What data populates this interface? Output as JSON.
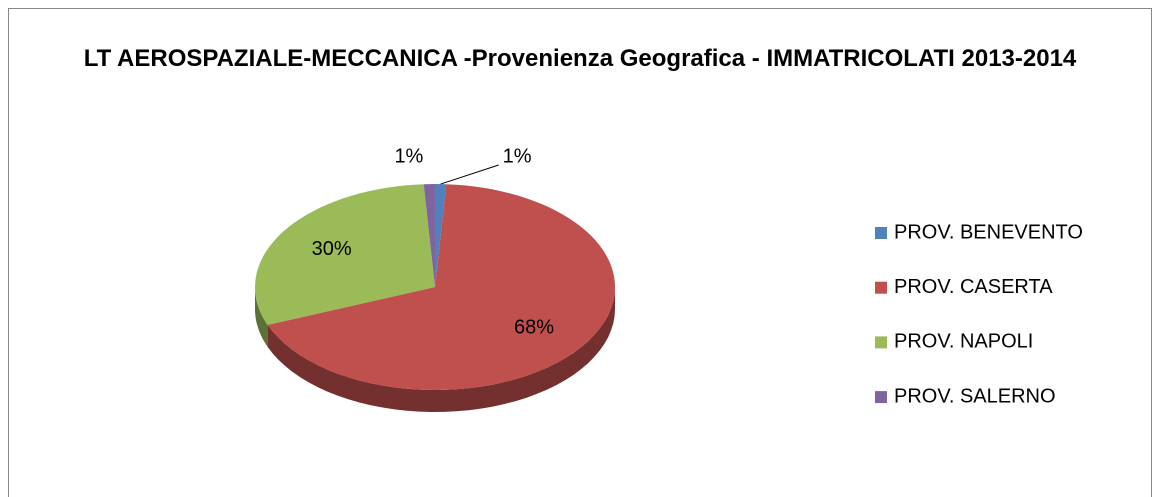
{
  "chart_data": {
    "type": "pie3d",
    "title": "LT AEROSPAZIALE-MECCANICA -Provenienza Geografica - IMMATRICOLATI 2013-2014",
    "categories": [
      "PROV. BENEVENTO",
      "PROV. CASERTA",
      "PROV. NAPOLI",
      "PROV. SALERNO"
    ],
    "values": [
      1,
      68,
      30,
      1
    ],
    "value_labels": [
      "1%",
      "68%",
      "30%",
      "1%"
    ],
    "colors": [
      "#4f81bd",
      "#c0504d",
      "#9bbb59",
      "#8064a2"
    ],
    "legend": "right"
  }
}
